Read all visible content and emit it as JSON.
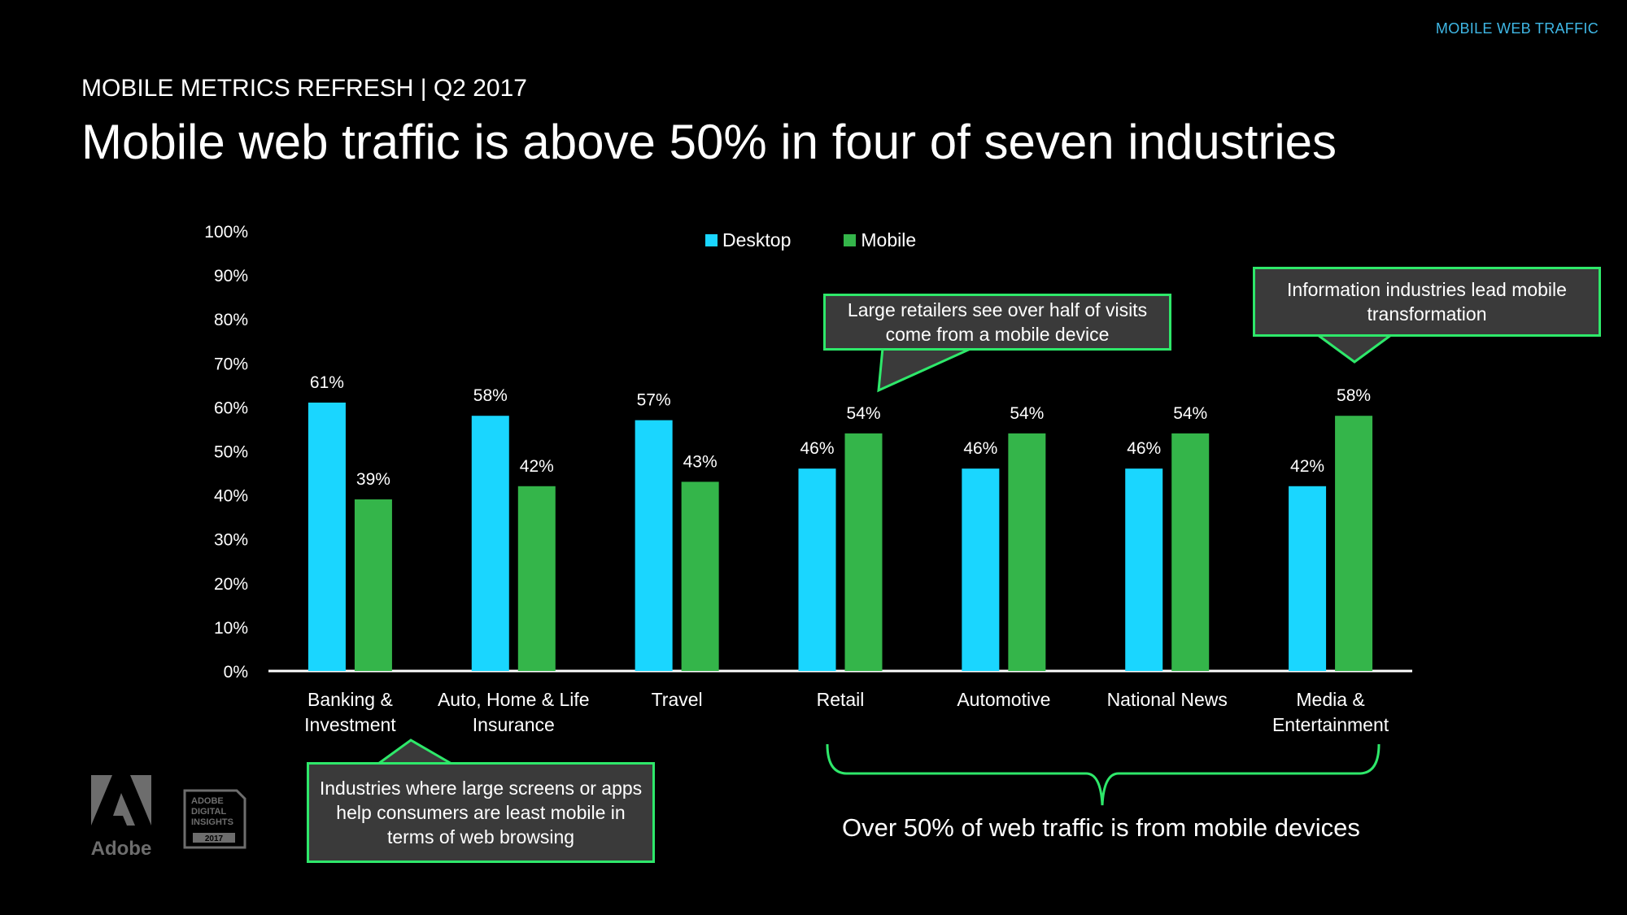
{
  "header": {
    "section_tag": "MOBILE WEB TRAFFIC",
    "subtitle": "MOBILE METRICS REFRESH | Q2 2017",
    "title": "Mobile web traffic is above 50% in four of seven industries"
  },
  "legend": {
    "desktop": "Desktop",
    "mobile": "Mobile"
  },
  "colors": {
    "desktop": "#1ad6ff",
    "mobile": "#34b54a",
    "callout_border": "#2ee86a",
    "callout_fill": "#3a3a3a"
  },
  "callouts": {
    "retail": "Large retailers see over half of visits come from a mobile device",
    "media": "Information industries lead mobile transformation",
    "banking": "Industries where large screens or apps help consumers are least mobile in terms of web browsing"
  },
  "bottom_note": "Over 50% of web traffic is from mobile devices",
  "logos": {
    "adobe": "Adobe",
    "adi_line1": "ADOBE",
    "adi_line2": "DIGITAL",
    "adi_line3": "INSIGHTS",
    "adi_year": "2017"
  },
  "chart_data": {
    "type": "bar",
    "title": "Mobile web traffic is above 50% in four of seven industries",
    "xlabel": "",
    "ylabel": "",
    "ylim": [
      0,
      100
    ],
    "yticks": [
      "0%",
      "10%",
      "20%",
      "30%",
      "40%",
      "50%",
      "60%",
      "70%",
      "80%",
      "90%",
      "100%"
    ],
    "categories": [
      [
        "Banking &",
        "Investment"
      ],
      [
        "Auto, Home & Life",
        "Insurance"
      ],
      [
        "Travel"
      ],
      [
        "Retail"
      ],
      [
        "Automotive"
      ],
      [
        "National News"
      ],
      [
        "Media &",
        "Entertainment"
      ]
    ],
    "series": [
      {
        "name": "Desktop",
        "values": [
          61,
          58,
          57,
          46,
          46,
          46,
          42
        ],
        "labels": [
          "61%",
          "58%",
          "57%",
          "46%",
          "46%",
          "46%",
          "42%"
        ]
      },
      {
        "name": "Mobile",
        "values": [
          39,
          42,
          43,
          54,
          54,
          54,
          58
        ],
        "labels": [
          "39%",
          "42%",
          "43%",
          "54%",
          "54%",
          "54%",
          "58%"
        ]
      }
    ],
    "grid": false,
    "legend_position": "top-center"
  }
}
